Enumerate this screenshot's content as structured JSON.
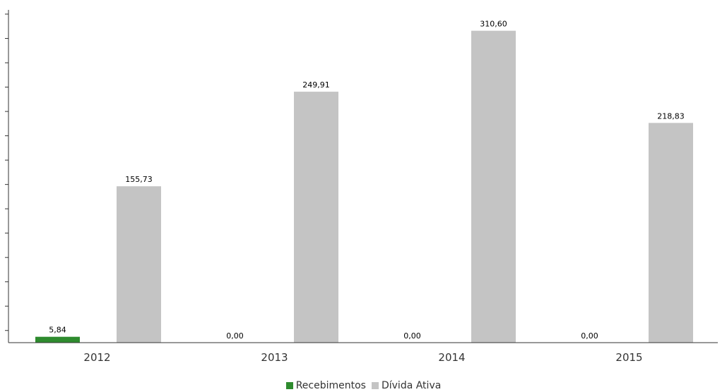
{
  "chart_data": {
    "type": "bar",
    "categories": [
      "2012",
      "2013",
      "2014",
      "2015"
    ],
    "series": [
      {
        "name": "Recebimentos",
        "color": "#2e8b2e",
        "values": [
          5.84,
          0.0,
          0.0,
          0.0
        ],
        "labels": [
          "5,84",
          "0,00",
          "0,00",
          "0,00"
        ]
      },
      {
        "name": "Dívida Ativa",
        "color": "#c4c4c4",
        "values": [
          155.73,
          249.91,
          310.6,
          218.83
        ],
        "labels": [
          "155,73",
          "249,91",
          "310,60",
          "218,83"
        ]
      }
    ],
    "ylim": [
      0,
      330
    ],
    "legend_position": "bottom-center",
    "grid": false
  }
}
